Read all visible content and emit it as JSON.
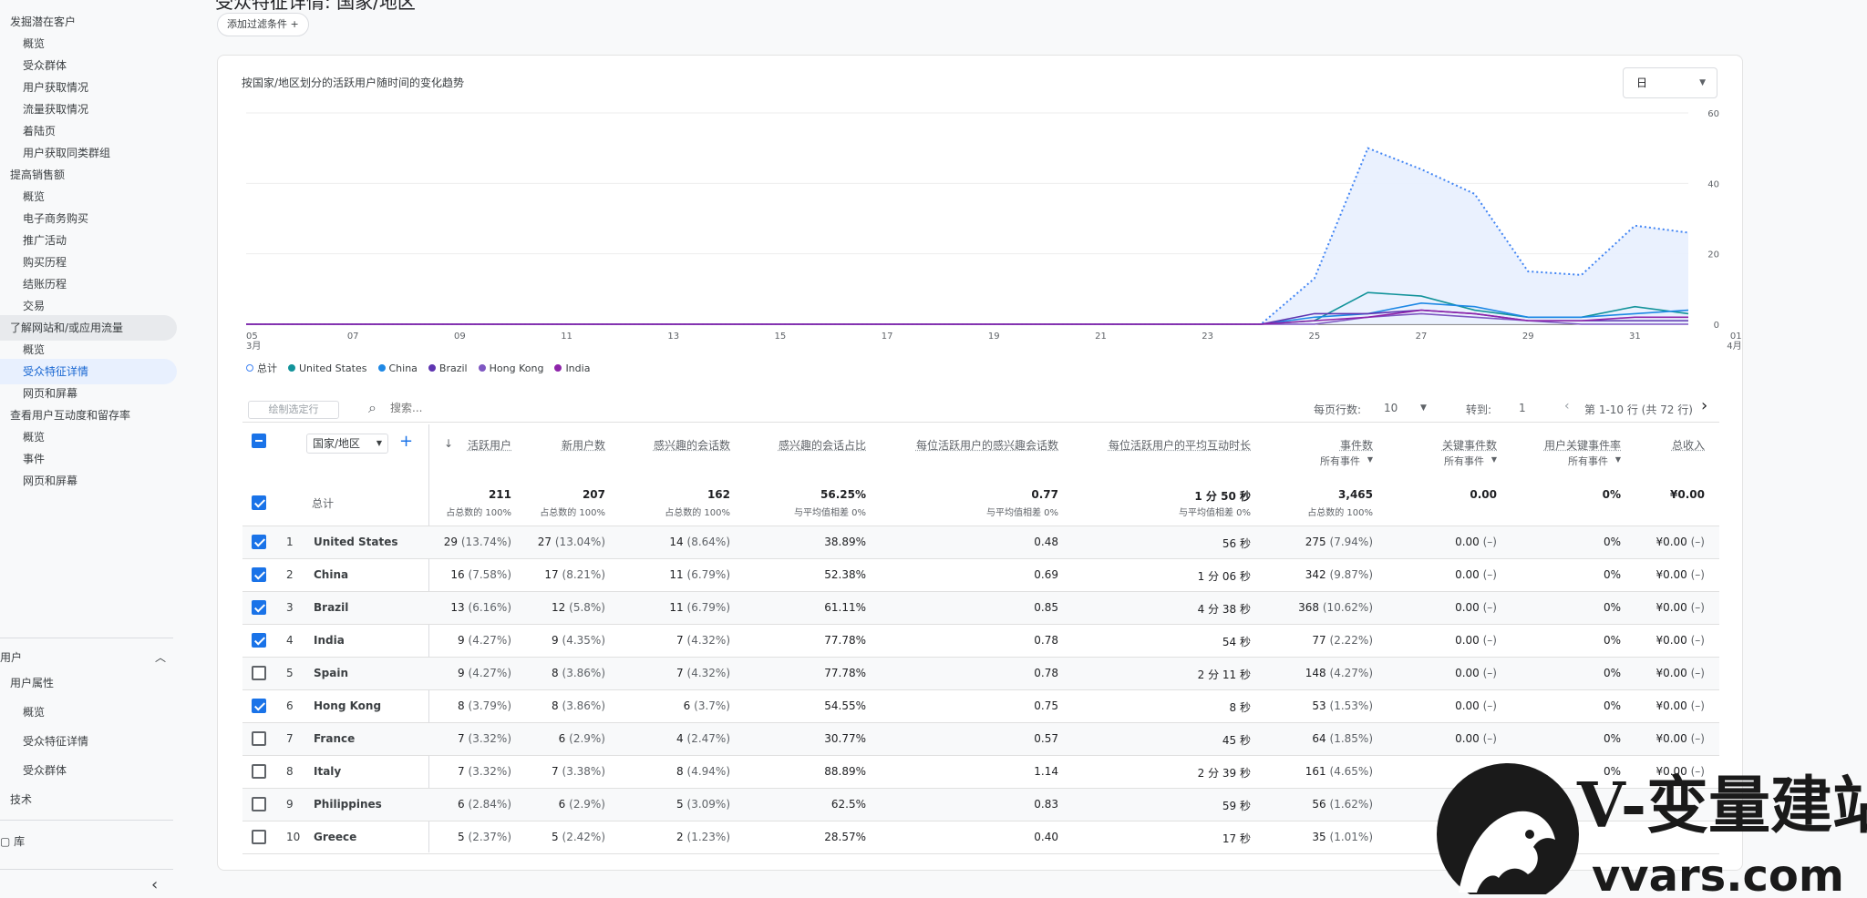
{
  "sidebar": {
    "items": [
      {
        "label": "发掘潜在客户",
        "level": 1
      },
      {
        "label": "概览",
        "level": 2
      },
      {
        "label": "受众群体",
        "level": 2
      },
      {
        "label": "用户获取情况",
        "level": 2
      },
      {
        "label": "流量获取情况",
        "level": 2
      },
      {
        "label": "着陆页",
        "level": 2
      },
      {
        "label": "用户获取同类群组",
        "level": 2
      },
      {
        "label": "提高销售额",
        "level": 1
      },
      {
        "label": "概览",
        "level": 2
      },
      {
        "label": "电子商务购买",
        "level": 2
      },
      {
        "label": "推广活动",
        "level": 2
      },
      {
        "label": "购买历程",
        "level": 2
      },
      {
        "label": "结账历程",
        "level": 2
      },
      {
        "label": "交易",
        "level": 2
      },
      {
        "label": "了解网站和/或应用流量",
        "level": 1
      },
      {
        "label": "概览",
        "level": 2
      },
      {
        "label": "受众特征详情",
        "level": 2
      },
      {
        "label": "网页和屏幕",
        "level": 2
      },
      {
        "label": "查看用户互动度和留存率",
        "level": 1
      },
      {
        "label": "概览",
        "level": 2
      },
      {
        "label": "事件",
        "level": 2
      },
      {
        "label": "网页和屏幕",
        "level": 2
      }
    ],
    "user_section": "用户",
    "user_items": [
      {
        "label": "用户属性",
        "level": 1
      },
      {
        "label": "概览",
        "level": 2
      },
      {
        "label": "受众特征详情",
        "level": 2
      },
      {
        "label": "受众群体",
        "level": 2
      },
      {
        "label": "技术",
        "level": 1
      }
    ],
    "library": "库",
    "collapse_icon": "chevron-left-icon"
  },
  "header": {
    "title_fragment": "受众特征详情: 国家/地区",
    "add_filter": "添加过滤条件"
  },
  "chart_card": {
    "title": "按国家/地区划分的活跃用户随时间的变化趋势",
    "period": "日"
  },
  "chart_data": {
    "type": "line",
    "title": "按国家/地区划分的活跃用户随时间的变化趋势",
    "x_labels": [
      "05\n3月",
      "07",
      "09",
      "11",
      "13",
      "15",
      "17",
      "19",
      "21",
      "23",
      "25",
      "27",
      "29",
      "31",
      "01\n4月"
    ],
    "ylim": [
      0,
      60
    ],
    "yticks": [
      0,
      20,
      40,
      60
    ],
    "y_axis_side": "right",
    "grid": true,
    "legend_position": "bottom-left",
    "x": [
      "03-05",
      "03-06",
      "03-07",
      "03-08",
      "03-09",
      "03-10",
      "03-11",
      "03-12",
      "03-13",
      "03-14",
      "03-15",
      "03-16",
      "03-17",
      "03-18",
      "03-19",
      "03-20",
      "03-21",
      "03-22",
      "03-23",
      "03-24",
      "03-25",
      "03-26",
      "03-27",
      "03-28",
      "03-29",
      "03-30",
      "03-31",
      "04-01"
    ],
    "series": [
      {
        "name": "总计",
        "color": "#4285f4",
        "style": "dotted-area",
        "values": [
          0,
          0,
          0,
          0,
          0,
          0,
          0,
          0,
          0,
          0,
          0,
          0,
          0,
          0,
          0,
          0,
          0,
          0,
          0,
          0,
          13,
          50,
          44,
          37,
          15,
          14,
          28,
          26
        ]
      },
      {
        "name": "United States",
        "color": "#12939a",
        "values": [
          0,
          0,
          0,
          0,
          0,
          0,
          0,
          0,
          0,
          0,
          0,
          0,
          0,
          0,
          0,
          0,
          0,
          0,
          0,
          0,
          1,
          9,
          8,
          4,
          2,
          2,
          5,
          3
        ]
      },
      {
        "name": "China",
        "color": "#1e88e5",
        "values": [
          0,
          0,
          0,
          0,
          0,
          0,
          0,
          0,
          0,
          0,
          0,
          0,
          0,
          0,
          0,
          0,
          0,
          0,
          0,
          0,
          2,
          3,
          6,
          5,
          2,
          2,
          3,
          4
        ]
      },
      {
        "name": "Brazil",
        "color": "#5e35b1",
        "values": [
          0,
          0,
          0,
          0,
          0,
          0,
          0,
          0,
          0,
          0,
          0,
          0,
          0,
          0,
          0,
          0,
          0,
          0,
          0,
          0,
          3,
          3,
          4,
          3,
          1,
          1,
          1,
          1
        ]
      },
      {
        "name": "Hong Kong",
        "color": "#7e57c2",
        "values": [
          0,
          0,
          0,
          0,
          0,
          0,
          0,
          0,
          0,
          0,
          0,
          0,
          0,
          0,
          0,
          0,
          0,
          0,
          0,
          0,
          0,
          2,
          3,
          2,
          1,
          0,
          0,
          0
        ]
      },
      {
        "name": "India",
        "color": "#8e24aa",
        "values": [
          0,
          0,
          0,
          0,
          0,
          0,
          0,
          0,
          0,
          0,
          0,
          0,
          0,
          0,
          0,
          0,
          0,
          0,
          0,
          0,
          1,
          2,
          4,
          3,
          1,
          1,
          2,
          2
        ]
      }
    ]
  },
  "legend": [
    {
      "name": "总计",
      "color": "#a8c7fa"
    },
    {
      "name": "United States",
      "color": "#12939a"
    },
    {
      "name": "China",
      "color": "#1e88e5"
    },
    {
      "name": "Brazil",
      "color": "#5e35b1"
    },
    {
      "name": "Hong Kong",
      "color": "#7e57c2"
    },
    {
      "name": "India",
      "color": "#8e24aa"
    }
  ],
  "toolbar": {
    "plot_rows": "绘制选定行",
    "search_placeholder": "搜索...",
    "rows_per_page_label": "每页行数:",
    "rows_per_page": "10",
    "goto_label": "转到:",
    "goto_value": "1",
    "range_text": "第 1-10 行 (共 72 行)"
  },
  "table": {
    "dimension": "国家/地区",
    "columns": [
      {
        "label": "活跃用户",
        "sub": "",
        "sorted": true
      },
      {
        "label": "新用户数",
        "sub": ""
      },
      {
        "label": "感兴趣的会话数",
        "sub": ""
      },
      {
        "label": "感兴趣的会话占比",
        "sub": ""
      },
      {
        "label": "每位活跃用户的感兴趣会话数",
        "sub": ""
      },
      {
        "label": "每位活跃用户的平均互动时长",
        "sub": ""
      },
      {
        "label": "事件数",
        "sub": "所有事件"
      },
      {
        "label": "关键事件数",
        "sub": "所有事件"
      },
      {
        "label": "用户关键事件率",
        "sub": "所有事件"
      },
      {
        "label": "总收入",
        "sub": ""
      }
    ],
    "total": {
      "label": "总计",
      "values": [
        "211",
        "207",
        "162",
        "56.25%",
        "0.77",
        "1 分 50 秒",
        "3,465",
        "0.00",
        "0%",
        "¥0.00"
      ],
      "subs": [
        "占总数的 100%",
        "占总数的 100%",
        "占总数的 100%",
        "与平均值相差 0%",
        "与平均值相差 0%",
        "与平均值相差 0%",
        "占总数的 100%",
        "",
        "",
        ""
      ]
    },
    "rows": [
      {
        "idx": "1",
        "name": "United States",
        "checked": true,
        "v": [
          "29",
          "27",
          "14",
          "38.89%",
          "0.48",
          "56 秒",
          "275",
          "0.00",
          "0%",
          "¥0.00"
        ],
        "p": [
          "(13.74%)",
          "(13.04%)",
          "(8.64%)",
          "",
          "",
          "",
          "(7.94%)",
          "(–)",
          "",
          "(–)"
        ]
      },
      {
        "idx": "2",
        "name": "China",
        "checked": true,
        "v": [
          "16",
          "17",
          "11",
          "52.38%",
          "0.69",
          "1 分 06 秒",
          "342",
          "0.00",
          "0%",
          "¥0.00"
        ],
        "p": [
          "(7.58%)",
          "(8.21%)",
          "(6.79%)",
          "",
          "",
          "",
          "(9.87%)",
          "(–)",
          "",
          "(–)"
        ]
      },
      {
        "idx": "3",
        "name": "Brazil",
        "checked": true,
        "v": [
          "13",
          "12",
          "11",
          "61.11%",
          "0.85",
          "4 分 38 秒",
          "368",
          "0.00",
          "0%",
          "¥0.00"
        ],
        "p": [
          "(6.16%)",
          "(5.8%)",
          "(6.79%)",
          "",
          "",
          "",
          "(10.62%)",
          "(–)",
          "",
          "(–)"
        ]
      },
      {
        "idx": "4",
        "name": "India",
        "checked": true,
        "v": [
          "9",
          "9",
          "7",
          "77.78%",
          "0.78",
          "54 秒",
          "77",
          "0.00",
          "0%",
          "¥0.00"
        ],
        "p": [
          "(4.27%)",
          "(4.35%)",
          "(4.32%)",
          "",
          "",
          "",
          "(2.22%)",
          "(–)",
          "",
          "(–)"
        ]
      },
      {
        "idx": "5",
        "name": "Spain",
        "checked": false,
        "v": [
          "9",
          "8",
          "7",
          "77.78%",
          "0.78",
          "2 分 11 秒",
          "148",
          "0.00",
          "0%",
          "¥0.00"
        ],
        "p": [
          "(4.27%)",
          "(3.86%)",
          "(4.32%)",
          "",
          "",
          "",
          "(4.27%)",
          "(–)",
          "",
          "(–)"
        ]
      },
      {
        "idx": "6",
        "name": "Hong Kong",
        "checked": true,
        "v": [
          "8",
          "8",
          "6",
          "54.55%",
          "0.75",
          "8 秒",
          "53",
          "0.00",
          "0%",
          "¥0.00"
        ],
        "p": [
          "(3.79%)",
          "(3.86%)",
          "(3.7%)",
          "",
          "",
          "",
          "(1.53%)",
          "(–)",
          "",
          "(–)"
        ]
      },
      {
        "idx": "7",
        "name": "France",
        "checked": false,
        "v": [
          "7",
          "6",
          "4",
          "30.77%",
          "0.57",
          "45 秒",
          "64",
          "0.00",
          "0%",
          "¥0.00"
        ],
        "p": [
          "(3.32%)",
          "(2.9%)",
          "(2.47%)",
          "",
          "",
          "",
          "(1.85%)",
          "(–)",
          "",
          "(–)"
        ]
      },
      {
        "idx": "8",
        "name": "Italy",
        "checked": false,
        "v": [
          "7",
          "7",
          "8",
          "88.89%",
          "1.14",
          "2 分 39 秒",
          "161",
          "",
          "0%",
          "¥0.00"
        ],
        "p": [
          "(3.32%)",
          "(3.38%)",
          "(4.94%)",
          "",
          "",
          "",
          "(4.65%)",
          "",
          "",
          "(–)"
        ]
      },
      {
        "idx": "9",
        "name": "Philippines",
        "checked": false,
        "v": [
          "6",
          "6",
          "5",
          "62.5%",
          "0.83",
          "59 秒",
          "56",
          "",
          "",
          ""
        ],
        "p": [
          "(2.84%)",
          "(2.9%)",
          "(3.09%)",
          "",
          "",
          "",
          "(1.62%)",
          "",
          "",
          ""
        ]
      },
      {
        "idx": "10",
        "name": "Greece",
        "checked": false,
        "v": [
          "5",
          "5",
          "2",
          "28.57%",
          "0.40",
          "17 秒",
          "35",
          "",
          "",
          ""
        ],
        "p": [
          "(2.37%)",
          "(2.42%)",
          "(1.23%)",
          "",
          "",
          "",
          "(1.01%)",
          "",
          "",
          ""
        ]
      }
    ]
  },
  "watermark": {
    "brand": "V-变量建站",
    "domain": "vvars.com"
  }
}
